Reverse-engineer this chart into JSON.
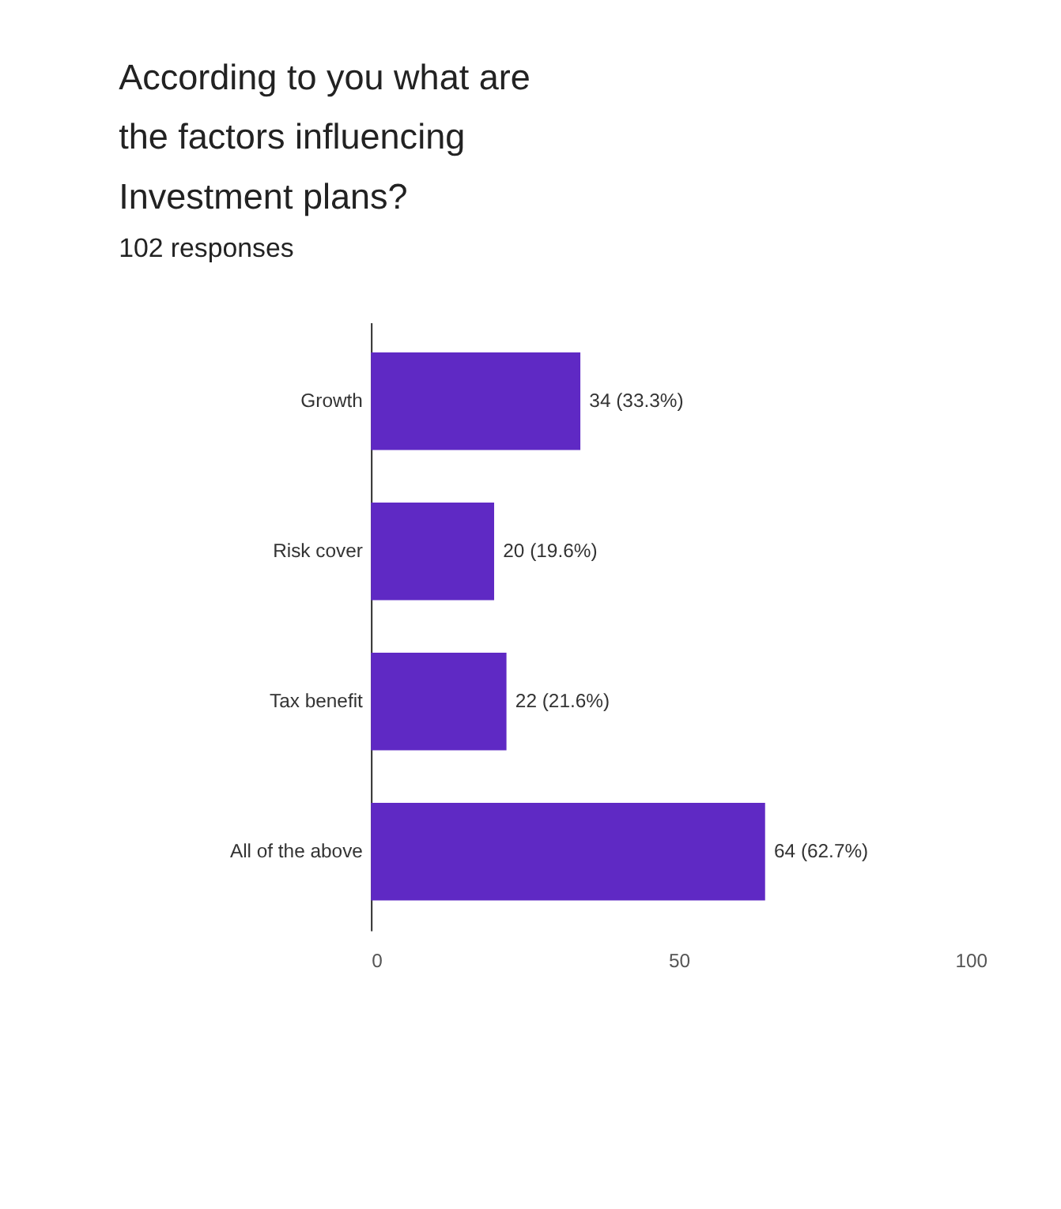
{
  "chart_data": {
    "type": "bar",
    "orientation": "horizontal",
    "title": "According to you what are the factors influencing Investment plans?",
    "subtitle": "102 responses",
    "categories": [
      "Growth",
      "Risk cover",
      "Tax benefit",
      "All of the above"
    ],
    "values": [
      34,
      20,
      22,
      64
    ],
    "color": "#5f29c4",
    "value_labels": [
      "34 (33.3%)",
      "20 (19.6%)",
      "22 (21.6%)",
      "64 (62.7%)"
    ],
    "xlim": [
      0,
      100
    ],
    "xticks": [
      0,
      50,
      100
    ],
    "grid": false
  }
}
